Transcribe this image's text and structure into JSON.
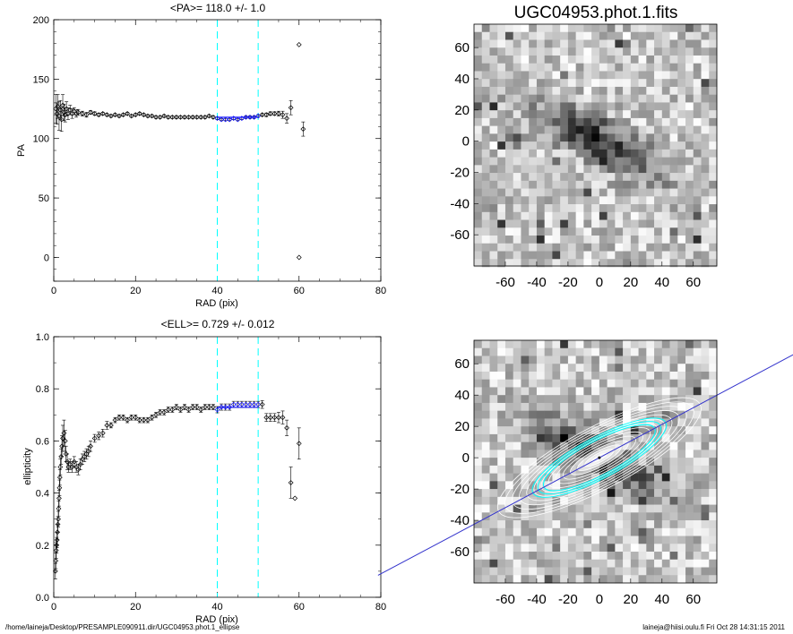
{
  "chart_data": [
    {
      "type": "scatter",
      "title": "<PA>= 118.0 +/-   1.0",
      "xlabel": "RAD (pix)",
      "ylabel": "PA",
      "xlim": [
        0,
        80
      ],
      "ylim": [
        -20,
        200
      ],
      "xticks": [
        "0",
        "20",
        "40",
        "60",
        "80"
      ],
      "yticks": [
        "0",
        "50",
        "100",
        "150",
        "200"
      ],
      "vlines": [
        40,
        50
      ],
      "fit_range": [
        40,
        50
      ],
      "fit_value": 118.0,
      "points": [
        [
          0.5,
          125,
          12
        ],
        [
          0.8,
          121,
          9
        ],
        [
          1.0,
          127,
          10
        ],
        [
          1.3,
          119,
          12
        ],
        [
          1.6,
          124,
          8
        ],
        [
          1.9,
          116,
          10
        ],
        [
          2.2,
          128,
          9
        ],
        [
          2.5,
          122,
          7
        ],
        [
          2.8,
          120,
          6
        ],
        [
          3.1,
          125,
          6
        ],
        [
          3.5,
          121,
          5
        ],
        [
          4.0,
          124,
          4
        ],
        [
          4.5,
          121,
          4
        ],
        [
          5.0,
          123,
          3
        ],
        [
          5.5,
          121,
          3
        ],
        [
          6,
          122,
          2.5
        ],
        [
          7,
          121,
          2
        ],
        [
          8,
          120,
          2
        ],
        [
          9,
          122,
          1.5
        ],
        [
          10,
          121,
          1.5
        ],
        [
          11,
          120,
          1.2
        ],
        [
          12,
          121,
          1
        ],
        [
          13,
          120,
          1
        ],
        [
          14,
          119,
          1
        ],
        [
          15,
          120,
          1
        ],
        [
          16,
          119,
          1
        ],
        [
          17,
          120,
          1
        ],
        [
          18,
          121,
          1
        ],
        [
          19,
          119,
          1
        ],
        [
          20,
          120,
          1
        ],
        [
          21,
          121,
          1
        ],
        [
          22,
          120,
          1
        ],
        [
          23,
          119,
          1
        ],
        [
          24,
          119,
          1
        ],
        [
          25,
          118,
          1
        ],
        [
          26,
          118,
          1
        ],
        [
          27,
          119,
          1
        ],
        [
          28,
          118,
          1
        ],
        [
          29,
          118,
          1
        ],
        [
          30,
          118,
          1
        ],
        [
          31,
          118,
          1
        ],
        [
          32,
          118,
          1
        ],
        [
          33,
          118,
          1
        ],
        [
          34,
          118,
          1
        ],
        [
          35,
          118,
          1
        ],
        [
          36,
          118,
          1
        ],
        [
          37,
          118,
          1
        ],
        [
          38,
          119,
          1
        ],
        [
          39,
          118,
          1
        ],
        [
          40,
          117,
          1
        ],
        [
          41,
          116,
          1
        ],
        [
          42,
          116,
          1
        ],
        [
          43,
          116,
          1
        ],
        [
          44,
          117,
          1
        ],
        [
          45,
          116,
          1
        ],
        [
          46,
          117,
          1
        ],
        [
          47,
          118,
          1
        ],
        [
          48,
          118,
          1
        ],
        [
          49,
          118,
          1
        ],
        [
          50,
          119,
          1
        ],
        [
          51,
          120,
          1
        ],
        [
          52,
          120,
          1.5
        ],
        [
          53,
          121,
          1.5
        ],
        [
          54,
          121,
          1.5
        ],
        [
          55,
          121,
          2
        ],
        [
          56,
          120,
          3
        ],
        [
          57,
          117,
          4
        ],
        [
          58,
          126,
          6
        ],
        [
          60,
          179,
          0
        ],
        [
          60,
          0,
          0
        ],
        [
          61,
          108,
          6
        ]
      ]
    },
    {
      "type": "scatter",
      "title": "<ELL>= 0.729 +/-  0.012",
      "xlabel": "RAD (pix)",
      "ylabel": "ellipticity",
      "xlim": [
        0,
        80
      ],
      "ylim": [
        0,
        1
      ],
      "xticks": [
        "0",
        "20",
        "40",
        "60",
        "80"
      ],
      "yticks": [
        "0.0",
        "0.2",
        "0.4",
        "0.6",
        "0.8",
        "1.0"
      ],
      "vlines": [
        40,
        50
      ],
      "fit_range": [
        40,
        50
      ],
      "fit_value": 0.729,
      "points": [
        [
          0.4,
          0.1,
          0.03
        ],
        [
          0.5,
          0.14,
          0.03
        ],
        [
          0.6,
          0.18,
          0.03
        ],
        [
          0.7,
          0.2,
          0.03
        ],
        [
          0.8,
          0.22,
          0.03
        ],
        [
          0.9,
          0.25,
          0.03
        ],
        [
          1.0,
          0.28,
          0.03
        ],
        [
          1.1,
          0.3,
          0.03
        ],
        [
          1.2,
          0.34,
          0.03
        ],
        [
          1.3,
          0.38,
          0.03
        ],
        [
          1.4,
          0.42,
          0.03
        ],
        [
          1.5,
          0.46,
          0.03
        ],
        [
          1.6,
          0.5,
          0.03
        ],
        [
          1.8,
          0.54,
          0.03
        ],
        [
          2.0,
          0.58,
          0.04
        ],
        [
          2.2,
          0.61,
          0.05
        ],
        [
          2.5,
          0.63,
          0.05
        ],
        [
          2.8,
          0.6,
          0.04
        ],
        [
          3.0,
          0.55,
          0.03
        ],
        [
          3.3,
          0.52,
          0.03
        ],
        [
          3.6,
          0.5,
          0.02
        ],
        [
          4.0,
          0.51,
          0.02
        ],
        [
          4.5,
          0.5,
          0.02
        ],
        [
          5.0,
          0.52,
          0.02
        ],
        [
          5.5,
          0.5,
          0.02
        ],
        [
          6,
          0.49,
          0.02
        ],
        [
          6.5,
          0.51,
          0.02
        ],
        [
          7,
          0.53,
          0.02
        ],
        [
          7.5,
          0.54,
          0.02
        ],
        [
          8,
          0.55,
          0.02
        ],
        [
          8.5,
          0.56,
          0.02
        ],
        [
          9,
          0.58,
          0.02
        ],
        [
          10,
          0.61,
          0.015
        ],
        [
          11,
          0.62,
          0.015
        ],
        [
          12,
          0.63,
          0.015
        ],
        [
          13,
          0.66,
          0.015
        ],
        [
          14,
          0.66,
          0.01
        ],
        [
          15,
          0.68,
          0.01
        ],
        [
          16,
          0.69,
          0.01
        ],
        [
          17,
          0.69,
          0.01
        ],
        [
          18,
          0.68,
          0.01
        ],
        [
          19,
          0.69,
          0.01
        ],
        [
          20,
          0.69,
          0.01
        ],
        [
          21,
          0.68,
          0.01
        ],
        [
          22,
          0.68,
          0.01
        ],
        [
          23,
          0.68,
          0.01
        ],
        [
          24,
          0.69,
          0.01
        ],
        [
          25,
          0.7,
          0.01
        ],
        [
          26,
          0.71,
          0.01
        ],
        [
          27,
          0.71,
          0.01
        ],
        [
          28,
          0.72,
          0.01
        ],
        [
          29,
          0.72,
          0.01
        ],
        [
          30,
          0.73,
          0.01
        ],
        [
          31,
          0.72,
          0.01
        ],
        [
          32,
          0.73,
          0.01
        ],
        [
          33,
          0.72,
          0.01
        ],
        [
          34,
          0.73,
          0.01
        ],
        [
          35,
          0.73,
          0.01
        ],
        [
          36,
          0.72,
          0.01
        ],
        [
          37,
          0.73,
          0.01
        ],
        [
          38,
          0.73,
          0.01
        ],
        [
          39,
          0.73,
          0.01
        ],
        [
          40,
          0.72,
          0.012
        ],
        [
          41,
          0.73,
          0.012
        ],
        [
          42,
          0.73,
          0.012
        ],
        [
          43,
          0.73,
          0.012
        ],
        [
          44,
          0.74,
          0.012
        ],
        [
          45,
          0.74,
          0.012
        ],
        [
          46,
          0.74,
          0.012
        ],
        [
          47,
          0.74,
          0.012
        ],
        [
          48,
          0.74,
          0.012
        ],
        [
          49,
          0.74,
          0.012
        ],
        [
          50,
          0.74,
          0.012
        ],
        [
          51,
          0.74,
          0.015
        ],
        [
          52,
          0.69,
          0.015
        ],
        [
          53,
          0.69,
          0.015
        ],
        [
          54,
          0.69,
          0.015
        ],
        [
          55,
          0.69,
          0.02
        ],
        [
          56,
          0.69,
          0.025
        ],
        [
          57,
          0.65,
          0.03
        ],
        [
          58,
          0.44,
          0.06
        ],
        [
          59,
          0.38,
          0
        ],
        [
          60,
          0.59,
          0.06
        ]
      ]
    },
    {
      "type": "heatmap",
      "title": "UGC04953.phot.1.fits",
      "xlim": [
        -80,
        75
      ],
      "ylim": [
        -80,
        75
      ],
      "xticks": [
        "-60",
        "-40",
        "-20",
        "0",
        "20",
        "40",
        "60"
      ],
      "yticks": [
        "-60",
        "-40",
        "-20",
        "0",
        "20",
        "40",
        "60"
      ],
      "colormap": "inverted-grey"
    },
    {
      "type": "heatmap",
      "title": "",
      "xlim": [
        -80,
        75
      ],
      "ylim": [
        -80,
        75
      ],
      "xticks": [
        "-60",
        "-40",
        "-20",
        "0",
        "20",
        "40",
        "60"
      ],
      "yticks": [
        "-60",
        "-40",
        "-20",
        "0",
        "20",
        "40",
        "60"
      ],
      "colormap": "inverted-grey",
      "overlays": [
        "isophote ellipses",
        "major-axis line",
        "fit ellipses"
      ],
      "pa_deg": 118.0,
      "ell": 0.729
    }
  ],
  "colors": {
    "fit_lines": "#00ffff",
    "fit_points": "#0000ff",
    "axis_line": "#3333cc"
  },
  "footer": {
    "left": "/home/laineja/Desktop/PRESAMPLE090911.dir/UGC04953.phot.1_ellipse",
    "right": "laineja@hiisi.oulu.fi  Fri Oct 28 14:31:15 2011"
  }
}
